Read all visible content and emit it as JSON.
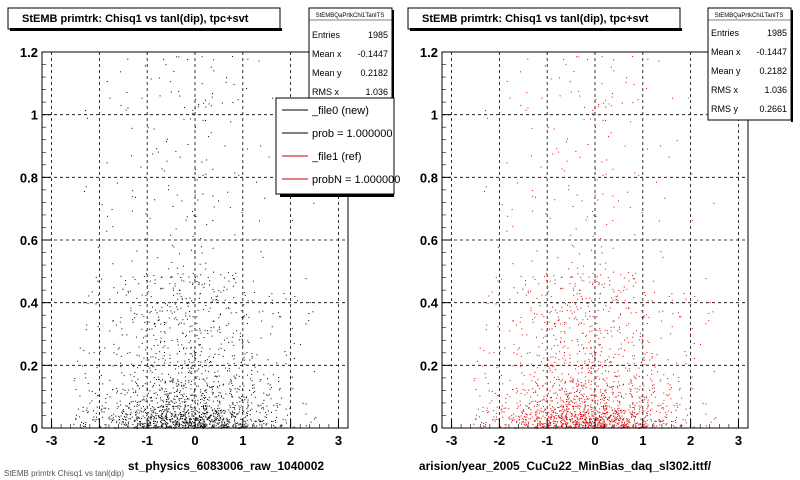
{
  "footer_text": "StEMB primtrk   Chisq1 vs tanl(dip)",
  "chart_data": [
    {
      "type": "scatter",
      "title": "StEMB primtrk: Chisq1 vs tanl(dip), tpc+svt",
      "xlabel": "st_physics_6083006_raw_1040002",
      "ylabel": "",
      "xlim": [
        -3.2,
        3.2
      ],
      "ylim": [
        0,
        1.2
      ],
      "x_ticks": [
        "-3",
        "-2",
        "-1",
        "0",
        "1",
        "2",
        "3"
      ],
      "y_ticks": [
        "0",
        "0.2",
        "0.4",
        "0.6",
        "0.8",
        "1",
        "1.2"
      ],
      "grid": true,
      "series": [
        {
          "name": "_file0 (new)",
          "color": "#000000",
          "points_count": 1985
        }
      ],
      "stats": {
        "header": "StEMBQaPrtkChi1TanITS",
        "rows": [
          {
            "label": "Entries",
            "value": "1985"
          },
          {
            "label": "Mean x",
            "value": "-0.1447"
          },
          {
            "label": "Mean y",
            "value": "0.2182"
          },
          {
            "label": "RMS x",
            "value": "1.036"
          }
        ]
      },
      "legend": {
        "placement": "top-right",
        "entries": [
          {
            "text": "_file0 (new)",
            "color": "#000000"
          },
          {
            "text": "prob = 1.000000",
            "color": "#000000"
          },
          {
            "text": "_file1 (ref)",
            "color": "#cc0000"
          },
          {
            "text": "probN = 1.000000",
            "color": "#cc0000"
          }
        ]
      }
    },
    {
      "type": "scatter",
      "title": "StEMB primtrk: Chisq1 vs tanl(dip), tpc+svt",
      "xlabel": "arision/year_2005_CuCu22_MinBias_daq_sl302.ittf/",
      "ylabel": "",
      "xlim": [
        -3.2,
        3.2
      ],
      "ylim": [
        0,
        1.2
      ],
      "x_ticks": [
        "-3",
        "-2",
        "-1",
        "0",
        "1",
        "2",
        "3"
      ],
      "y_ticks": [
        "0",
        "0.2",
        "0.4",
        "0.6",
        "0.8",
        "1",
        "1.2"
      ],
      "grid": true,
      "series": [
        {
          "name": "_file1 (ref)",
          "color": "#dd0000",
          "points_count": 1985
        }
      ],
      "stats": {
        "header": "StEMBQaPrtkChi1TanITS",
        "rows": [
          {
            "label": "Entries",
            "value": "1985"
          },
          {
            "label": "Mean x",
            "value": "-0.1447"
          },
          {
            "label": "Mean y",
            "value": "0.2182"
          },
          {
            "label": "RMS x",
            "value": "1.036"
          },
          {
            "label": "RMS y",
            "value": "0.2661"
          }
        ]
      }
    }
  ]
}
